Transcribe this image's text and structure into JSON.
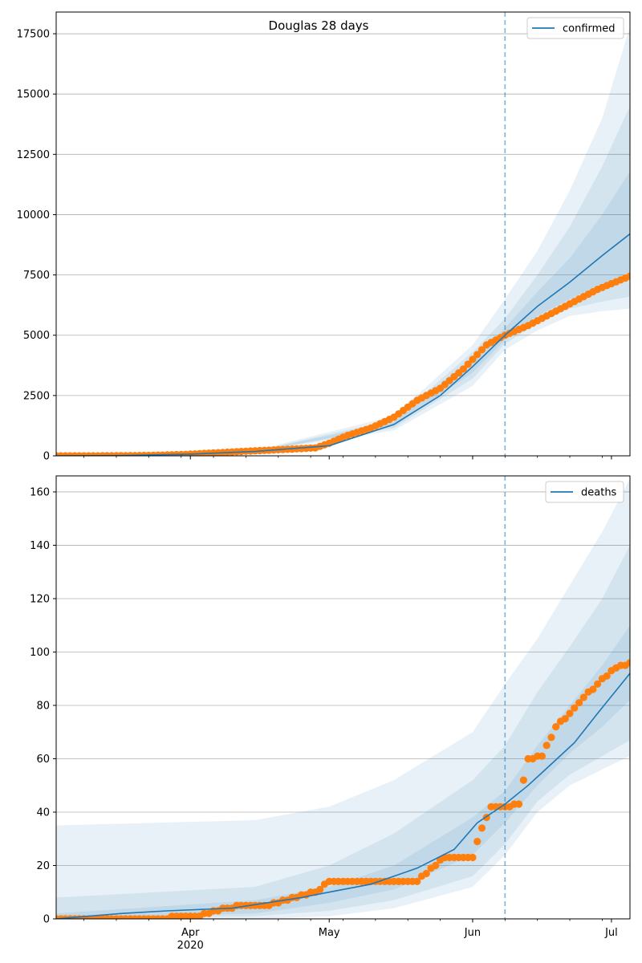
{
  "figure": {
    "title": "Douglas 28 days"
  },
  "chart_data": [
    {
      "type": "line",
      "name": "confirmed-panel",
      "title": "Douglas 28 days",
      "legend": {
        "label": "confirmed",
        "placement": "top-right"
      },
      "x_axis": {
        "type": "date",
        "range": [
          "2020-03-03",
          "2020-07-05"
        ],
        "major_ticks": [
          {
            "date": "2020-04-01",
            "label": "Apr",
            "sublabel": "2020"
          },
          {
            "date": "2020-05-01",
            "label": "May",
            "sublabel": ""
          },
          {
            "date": "2020-06-01",
            "label": "Jun",
            "sublabel": ""
          },
          {
            "date": "2020-07-01",
            "label": "Jul",
            "sublabel": ""
          }
        ]
      },
      "y_axis": {
        "range": [
          0,
          18400
        ],
        "ticks": [
          0,
          2500,
          5000,
          7500,
          10000,
          12500,
          15000,
          17500
        ],
        "tick_labels": [
          "0",
          "2500",
          "5000",
          "7500",
          "10000",
          "12500",
          "15000",
          "17500"
        ],
        "grid": true
      },
      "forecast_start": "2020-06-08",
      "colors": {
        "model": "#1f77b4",
        "observed": "#ff7f0e",
        "band": "#1f77b4"
      },
      "observed": {
        "dates": [
          "2020-03-03",
          "2020-03-10",
          "2020-03-17",
          "2020-03-24",
          "2020-03-31",
          "2020-04-07",
          "2020-04-14",
          "2020-04-21",
          "2020-04-28",
          "2020-05-01",
          "2020-05-05",
          "2020-05-10",
          "2020-05-15",
          "2020-05-20",
          "2020-05-25",
          "2020-05-30",
          "2020-06-04",
          "2020-06-08",
          "2020-06-13",
          "2020-06-18",
          "2020-06-23",
          "2020-06-28",
          "2020-07-05"
        ],
        "values": [
          0,
          0,
          5,
          20,
          60,
          130,
          200,
          260,
          330,
          520,
          850,
          1150,
          1600,
          2300,
          2800,
          3600,
          4600,
          5000,
          5400,
          5900,
          6400,
          6900,
          7450
        ]
      },
      "model": {
        "dates": [
          "2020-03-03",
          "2020-03-17",
          "2020-04-01",
          "2020-04-15",
          "2020-05-01",
          "2020-05-15",
          "2020-05-25",
          "2020-06-01",
          "2020-06-08",
          "2020-06-15",
          "2020-06-22",
          "2020-06-29",
          "2020-07-05"
        ],
        "values": [
          0,
          10,
          70,
          180,
          420,
          1300,
          2500,
          3700,
          5000,
          6200,
          7200,
          8300,
          9200
        ]
      },
      "bands": [
        {
          "dates": [
            "2020-03-03",
            "2020-04-15",
            "2020-05-15",
            "2020-06-01",
            "2020-06-08",
            "2020-06-15",
            "2020-06-22",
            "2020-06-29",
            "2020-07-05"
          ],
          "lower": [
            0,
            160,
            1050,
            2900,
            4400,
            5200,
            5800,
            6000,
            6100
          ],
          "upper": [
            0,
            230,
            1650,
            4600,
            6500,
            8500,
            11000,
            14000,
            17800
          ]
        },
        {
          "dates": [
            "2020-03-03",
            "2020-04-15",
            "2020-05-15",
            "2020-06-01",
            "2020-06-08",
            "2020-06-15",
            "2020-06-22",
            "2020-06-29",
            "2020-07-05"
          ],
          "lower": [
            0,
            170,
            1150,
            3200,
            4650,
            5500,
            6100,
            6400,
            6600
          ],
          "upper": [
            0,
            210,
            1500,
            4300,
            5700,
            7500,
            9500,
            12000,
            14500
          ]
        },
        {
          "dates": [
            "2020-03-03",
            "2020-04-15",
            "2020-05-15",
            "2020-06-01",
            "2020-06-08",
            "2020-06-15",
            "2020-06-22",
            "2020-06-29",
            "2020-07-05"
          ],
          "lower": [
            0,
            175,
            1220,
            3450,
            4800,
            5800,
            6500,
            7100,
            7600
          ],
          "upper": [
            0,
            195,
            1400,
            4000,
            5300,
            6800,
            8200,
            10000,
            11800
          ]
        }
      ]
    },
    {
      "type": "line",
      "name": "deaths-panel",
      "title": "",
      "legend": {
        "label": "deaths",
        "placement": "top-right"
      },
      "x_axis": {
        "type": "date",
        "range": [
          "2020-03-03",
          "2020-07-05"
        ],
        "major_ticks": [
          {
            "date": "2020-04-01",
            "label": "Apr",
            "sublabel": "2020"
          },
          {
            "date": "2020-05-01",
            "label": "May",
            "sublabel": ""
          },
          {
            "date": "2020-06-01",
            "label": "Jun",
            "sublabel": ""
          },
          {
            "date": "2020-07-01",
            "label": "Jul",
            "sublabel": ""
          }
        ]
      },
      "y_axis": {
        "range": [
          0,
          166
        ],
        "ticks": [
          0,
          20,
          40,
          60,
          80,
          100,
          120,
          140,
          160
        ],
        "tick_labels": [
          "0",
          "20",
          "40",
          "60",
          "80",
          "100",
          "120",
          "140",
          "160"
        ],
        "grid": true
      },
      "forecast_start": "2020-06-08",
      "colors": {
        "model": "#1f77b4",
        "observed": "#ff7f0e",
        "band": "#1f77b4"
      },
      "observed": {
        "dates": [
          "2020-03-03",
          "2020-03-10",
          "2020-03-17",
          "2020-03-24",
          "2020-03-31",
          "2020-04-03",
          "2020-04-06",
          "2020-04-12",
          "2020-04-18",
          "2020-04-23",
          "2020-04-28",
          "2020-05-01",
          "2020-05-08",
          "2020-05-14",
          "2020-05-20",
          "2020-05-26",
          "2020-06-01",
          "2020-06-03",
          "2020-06-05",
          "2020-06-08",
          "2020-06-11",
          "2020-06-13",
          "2020-06-16",
          "2020-06-19",
          "2020-06-22",
          "2020-06-25",
          "2020-06-28",
          "2020-07-01",
          "2020-07-05"
        ],
        "values": [
          0,
          0,
          0,
          0,
          1,
          1,
          3,
          5,
          5,
          8,
          10,
          14,
          14,
          14,
          14,
          23,
          23,
          34,
          42,
          42,
          43,
          60,
          61,
          72,
          77,
          83,
          88,
          93,
          96
        ]
      },
      "model": {
        "dates": [
          "2020-03-03",
          "2020-03-17",
          "2020-03-27",
          "2020-04-10",
          "2020-04-25",
          "2020-05-01",
          "2020-05-10",
          "2020-05-20",
          "2020-05-28",
          "2020-06-02",
          "2020-06-08",
          "2020-06-13",
          "2020-06-18",
          "2020-06-23",
          "2020-06-28",
          "2020-07-05"
        ],
        "values": [
          0,
          2,
          3,
          4,
          8,
          10,
          13,
          19,
          26,
          36,
          43,
          50,
          58,
          66,
          77,
          92
        ]
      },
      "bands": [
        {
          "dates": [
            "2020-03-03",
            "2020-04-15",
            "2020-05-01",
            "2020-05-15",
            "2020-06-01",
            "2020-06-08",
            "2020-06-15",
            "2020-06-22",
            "2020-06-29",
            "2020-07-05"
          ],
          "lower": [
            0,
            0,
            1,
            4,
            12,
            24,
            40,
            50,
            56,
            61
          ],
          "upper": [
            35,
            37,
            42,
            52,
            70,
            88,
            105,
            125,
            145,
            165
          ]
        },
        {
          "dates": [
            "2020-03-03",
            "2020-04-15",
            "2020-05-01",
            "2020-05-15",
            "2020-06-01",
            "2020-06-08",
            "2020-06-15",
            "2020-06-22",
            "2020-06-29",
            "2020-07-05"
          ],
          "lower": [
            0,
            1,
            3,
            7,
            16,
            28,
            44,
            54,
            61,
            67
          ],
          "upper": [
            8,
            12,
            20,
            32,
            52,
            65,
            85,
            102,
            120,
            140
          ]
        },
        {
          "dates": [
            "2020-03-03",
            "2020-04-15",
            "2020-05-01",
            "2020-05-15",
            "2020-06-01",
            "2020-06-08",
            "2020-06-15",
            "2020-06-22",
            "2020-06-29",
            "2020-07-05"
          ],
          "lower": [
            0,
            2,
            6,
            11,
            24,
            36,
            50,
            62,
            72,
            82
          ],
          "upper": [
            2,
            7,
            12,
            20,
            38,
            48,
            65,
            80,
            95,
            110
          ]
        }
      ]
    }
  ]
}
